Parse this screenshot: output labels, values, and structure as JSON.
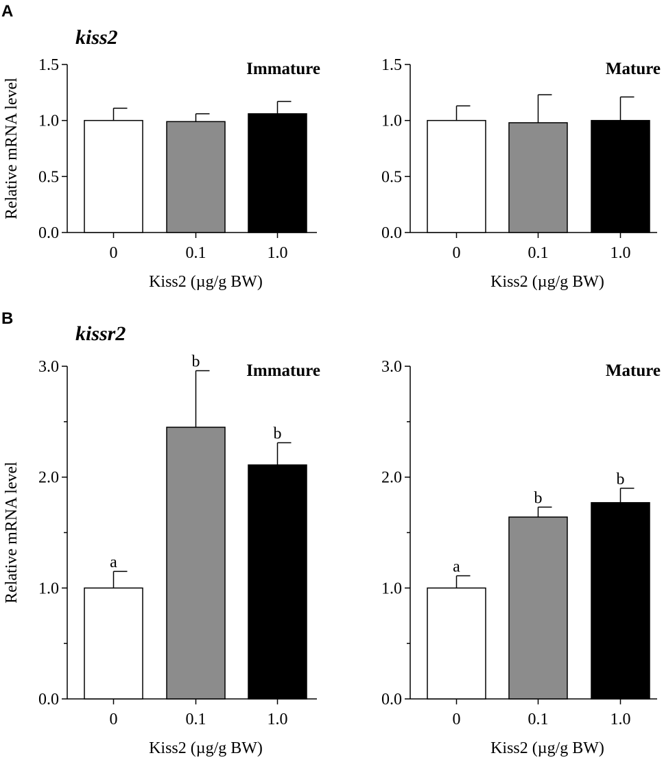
{
  "panels": [
    {
      "letter": "A",
      "gene": "kiss2"
    },
    {
      "letter": "B",
      "gene": "kissr2"
    }
  ],
  "bar_colors": [
    "#ffffff",
    "#8c8c8c",
    "#000000"
  ],
  "chart_data": [
    {
      "type": "bar",
      "panel": "A",
      "gene": "kiss2",
      "title": "Immature",
      "categories": [
        "0",
        "0.1",
        "1.0"
      ],
      "values": [
        1.0,
        0.99,
        1.06
      ],
      "errors": [
        0.11,
        0.07,
        0.11
      ],
      "sig_labels": [
        "",
        "",
        ""
      ],
      "ylim": [
        0,
        1.5
      ],
      "yticks": [
        0.0,
        0.5,
        1.0,
        1.5
      ],
      "ytick_labels": [
        "0.0",
        "0.5",
        "1.0",
        "1.5"
      ],
      "minor_ticks": [],
      "ylabel": "Relative mRNA level",
      "xlabel": "Kiss2 (µg/g BW)"
    },
    {
      "type": "bar",
      "panel": "A",
      "gene": "kiss2",
      "title": "Mature",
      "categories": [
        "0",
        "0.1",
        "1.0"
      ],
      "values": [
        1.0,
        0.98,
        1.0
      ],
      "errors": [
        0.13,
        0.25,
        0.21
      ],
      "sig_labels": [
        "",
        "",
        ""
      ],
      "ylim": [
        0,
        1.5
      ],
      "yticks": [
        0.0,
        0.5,
        1.0,
        1.5
      ],
      "ytick_labels": [
        "0.0",
        "0.5",
        "1.0",
        "1.5"
      ],
      "minor_ticks": [],
      "ylabel": "",
      "xlabel": "Kiss2 (µg/g BW)"
    },
    {
      "type": "bar",
      "panel": "B",
      "gene": "kissr2",
      "title": "Immature",
      "categories": [
        "0",
        "0.1",
        "1.0"
      ],
      "values": [
        1.0,
        2.45,
        2.11
      ],
      "errors": [
        0.15,
        0.51,
        0.2
      ],
      "sig_labels": [
        "a",
        "b",
        "b"
      ],
      "ylim": [
        0,
        3.0
      ],
      "yticks": [
        0.0,
        1.0,
        2.0,
        3.0
      ],
      "ytick_labels": [
        "0.0",
        "1.0",
        "2.0",
        "3.0"
      ],
      "minor_ticks": [
        0.5,
        1.5,
        2.5
      ],
      "ylabel": "Relative mRNA level",
      "xlabel": "Kiss2 (µg/g BW)"
    },
    {
      "type": "bar",
      "panel": "B",
      "gene": "kissr2",
      "title": "Mature",
      "categories": [
        "0",
        "0.1",
        "1.0"
      ],
      "values": [
        1.0,
        1.64,
        1.77
      ],
      "errors": [
        0.11,
        0.09,
        0.13
      ],
      "sig_labels": [
        "a",
        "b",
        "b"
      ],
      "ylim": [
        0,
        3.0
      ],
      "yticks": [
        0.0,
        1.0,
        2.0,
        3.0
      ],
      "ytick_labels": [
        "0.0",
        "1.0",
        "2.0",
        "3.0"
      ],
      "minor_ticks": [
        0.5,
        1.5,
        2.5
      ],
      "ylabel": "",
      "xlabel": "Kiss2 (µg/g BW)"
    }
  ]
}
